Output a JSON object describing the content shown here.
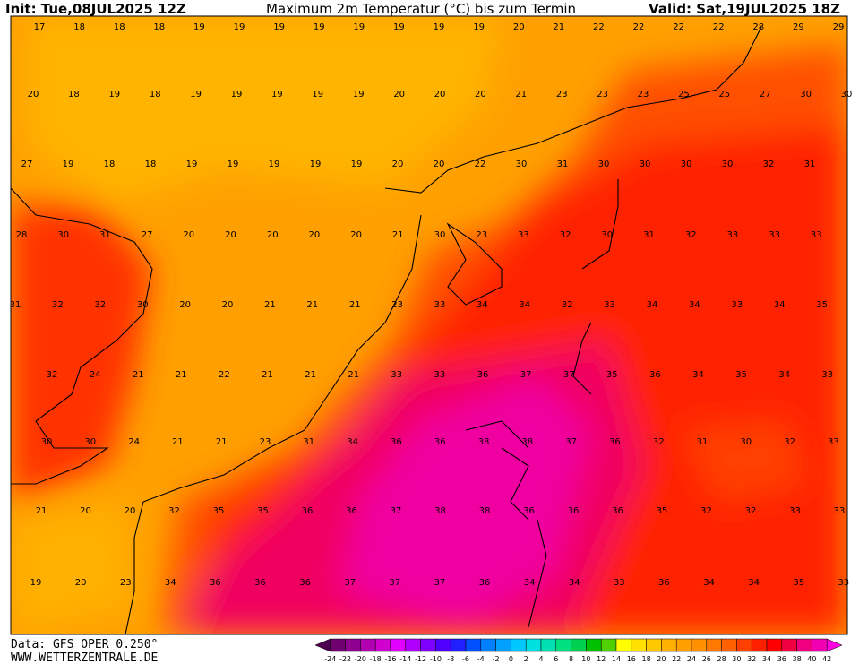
{
  "header": {
    "init": "Init: Tue,08JUL2025 12Z",
    "title": "Maximum 2m Temperatur (°C) bis zum Termin",
    "valid": "Valid: Sat,19JUL2025 18Z"
  },
  "map": {
    "rows": [
      [
        17,
        18,
        18,
        18,
        19,
        19,
        19,
        19,
        19,
        19,
        19,
        19,
        20,
        21,
        22,
        22,
        22,
        22,
        28,
        29,
        29
      ],
      [
        20,
        18,
        19,
        18,
        19,
        19,
        19,
        19,
        19,
        20,
        20,
        20,
        21,
        23,
        23,
        23,
        25,
        25,
        27,
        30,
        30
      ],
      [
        27,
        19,
        18,
        18,
        19,
        19,
        19,
        19,
        19,
        20,
        20,
        22,
        30,
        31,
        30,
        30,
        30,
        30,
        32,
        31
      ],
      [
        28,
        30,
        31,
        27,
        20,
        20,
        20,
        20,
        20,
        21,
        30,
        23,
        33,
        32,
        30,
        31,
        32,
        33,
        33,
        33
      ],
      [
        31,
        32,
        32,
        30,
        20,
        20,
        21,
        21,
        21,
        23,
        33,
        34,
        34,
        32,
        33,
        34,
        34,
        33,
        34,
        35
      ],
      [
        32,
        24,
        21,
        21,
        22,
        21,
        21,
        21,
        33,
        33,
        36,
        37,
        37,
        35,
        36,
        34,
        35,
        34,
        33
      ],
      [
        30,
        30,
        24,
        21,
        21,
        23,
        31,
        34,
        36,
        36,
        38,
        38,
        37,
        36,
        32,
        31,
        30,
        32,
        33
      ],
      [
        21,
        20,
        20,
        32,
        35,
        35,
        36,
        36,
        37,
        38,
        38,
        36,
        36,
        36,
        35,
        32,
        32,
        33,
        33
      ],
      [
        19,
        20,
        23,
        34,
        36,
        36,
        36,
        37,
        37,
        37,
        36,
        34,
        34,
        33,
        36,
        34,
        34,
        35,
        33
      ]
    ]
  },
  "colorbar": {
    "labels": [
      -24,
      -22,
      -20,
      -18,
      -16,
      -14,
      -12,
      -10,
      -8,
      -6,
      -4,
      -2,
      0,
      2,
      4,
      6,
      8,
      10,
      12,
      14,
      16,
      18,
      20,
      22,
      24,
      26,
      28,
      30,
      32,
      34,
      36,
      38,
      40,
      42
    ],
    "colors": [
      "#500050",
      "#700070",
      "#900090",
      "#b000b0",
      "#d000d0",
      "#e000ff",
      "#b000ff",
      "#8000ff",
      "#5000ff",
      "#2020ff",
      "#0050ff",
      "#0080ff",
      "#00a0ff",
      "#00c8ff",
      "#00e0e0",
      "#00e0b0",
      "#00e080",
      "#00d050",
      "#00c000",
      "#50d000",
      "#ffff00",
      "#ffe000",
      "#ffc800",
      "#ffb000",
      "#ffa000",
      "#ff9000",
      "#ff7800",
      "#ff6000",
      "#ff4000",
      "#ff2000",
      "#ff0000",
      "#f00040",
      "#f00080",
      "#f000b0",
      "#ff00e0"
    ]
  },
  "footer": {
    "data": "Data: GFS OPER 0.250°",
    "site": "WWW.WETTERZENTRALE.DE"
  }
}
